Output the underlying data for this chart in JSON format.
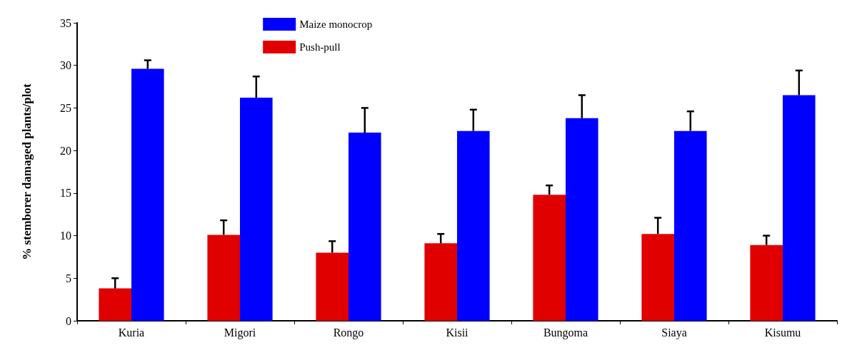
{
  "chart_data": {
    "type": "bar",
    "ylabel": "% stemborer damaged plants/plot",
    "categories": [
      "Kuria",
      "Migori",
      "Rongo",
      "Kisii",
      "Bungoma",
      "Siaya",
      "Kisumu"
    ],
    "series": [
      {
        "name": "Maize monocrop",
        "color": "#0000ff",
        "values": [
          29.6,
          26.2,
          22.1,
          22.3,
          23.8,
          22.3,
          26.5
        ],
        "errors": [
          [
            29.6,
            30.6
          ],
          [
            26.2,
            28.7
          ],
          [
            22.1,
            25.0
          ],
          [
            22.3,
            24.8
          ],
          [
            23.8,
            26.5
          ],
          [
            22.3,
            24.6
          ],
          [
            26.5,
            29.4
          ]
        ]
      },
      {
        "name": "Push-pull",
        "color": "#e00000",
        "values": [
          3.8,
          10.1,
          8.0,
          9.1,
          14.8,
          10.2,
          8.9
        ],
        "errors": [
          [
            3.8,
            5.0
          ],
          [
            10.1,
            11.8
          ],
          [
            8.0,
            9.35
          ],
          [
            9.1,
            10.2
          ],
          [
            14.8,
            15.9
          ],
          [
            10.2,
            12.1
          ],
          [
            8.9,
            10.0
          ]
        ]
      }
    ],
    "ylim": [
      0,
      35
    ],
    "yticks": [
      0,
      5,
      10,
      15,
      20,
      25,
      30,
      35
    ],
    "grid": false,
    "legend": "top"
  }
}
